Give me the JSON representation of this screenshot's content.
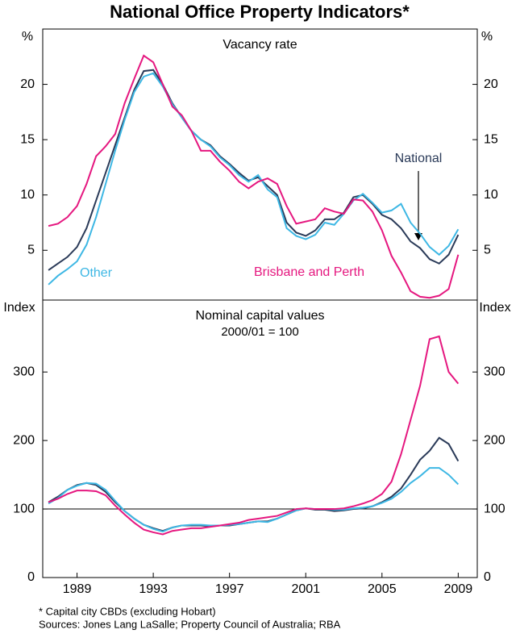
{
  "title": "National Office Property Indicators*",
  "notes": [
    "*    Capital city CBDs (excluding Hobart)",
    "Sources: Jones Lang LaSalle; Property Council of Australia; RBA"
  ],
  "chart_data": [
    {
      "type": "line",
      "title": "Vacancy rate",
      "y_unit": "%",
      "x": [
        1987.5,
        1988,
        1988.5,
        1989,
        1989.5,
        1990,
        1990.5,
        1991,
        1991.5,
        1992,
        1992.5,
        1993,
        1993.5,
        1994,
        1994.5,
        1995,
        1995.5,
        1996,
        1996.5,
        1997,
        1997.5,
        1998,
        1998.5,
        1999,
        1999.5,
        2000,
        2000.5,
        2001,
        2001.5,
        2002,
        2002.5,
        2003,
        2003.5,
        2004,
        2004.5,
        2005,
        2005.5,
        2006,
        2006.5,
        2007,
        2007.5,
        2008,
        2008.5,
        2009
      ],
      "xlim": [
        1987.2,
        2010
      ],
      "ylim": [
        0.5,
        25
      ],
      "yticks": [
        5,
        10,
        15,
        20
      ],
      "series": [
        {
          "name": "National",
          "color": "#2a3a58",
          "values": [
            3.2,
            3.8,
            4.4,
            5.3,
            7.0,
            9.5,
            12.0,
            14.5,
            17.0,
            19.5,
            21.2,
            21.3,
            20.0,
            18.3,
            17.0,
            15.8,
            15.0,
            14.5,
            13.5,
            12.8,
            12.0,
            11.3,
            11.6,
            10.8,
            10.0,
            7.5,
            6.6,
            6.3,
            6.8,
            7.8,
            7.8,
            8.4,
            9.8,
            10.0,
            9.2,
            8.2,
            7.8,
            7.0,
            5.8,
            5.2,
            4.2,
            3.8,
            4.6,
            6.4
          ]
        },
        {
          "name": "Other",
          "color": "#3db7e4",
          "values": [
            1.9,
            2.7,
            3.3,
            4.0,
            5.5,
            8.0,
            11.0,
            14.0,
            16.8,
            19.3,
            20.7,
            21.0,
            19.8,
            18.2,
            17.0,
            15.8,
            15.0,
            14.4,
            13.4,
            12.7,
            11.8,
            11.2,
            11.8,
            10.5,
            9.8,
            7.0,
            6.3,
            6.0,
            6.4,
            7.5,
            7.3,
            8.3,
            9.5,
            10.1,
            9.3,
            8.4,
            8.6,
            9.2,
            7.5,
            6.5,
            5.3,
            4.6,
            5.4,
            6.9
          ]
        },
        {
          "name": "Brisbane and Perth",
          "color": "#e5177f",
          "values": [
            7.2,
            7.4,
            8.0,
            9.0,
            11.0,
            13.5,
            14.4,
            15.5,
            18.3,
            20.5,
            22.6,
            22.0,
            20.0,
            18.0,
            17.2,
            15.8,
            14.0,
            14.0,
            13.0,
            12.2,
            11.2,
            10.6,
            11.2,
            11.5,
            11.0,
            9.0,
            7.4,
            7.6,
            7.8,
            8.8,
            8.5,
            8.3,
            9.6,
            9.5,
            8.5,
            6.8,
            4.5,
            3.0,
            1.3,
            0.8,
            0.7,
            0.9,
            1.5,
            4.6
          ]
        }
      ]
    },
    {
      "type": "line",
      "title": "Nominal capital values",
      "subtitle": "2000/01 = 100",
      "y_unit": "Index",
      "x": [
        1987.5,
        1988,
        1988.5,
        1989,
        1989.5,
        1990,
        1990.5,
        1991,
        1991.5,
        1992,
        1992.5,
        1993,
        1993.5,
        1994,
        1994.5,
        1995,
        1995.5,
        1996,
        1996.5,
        1997,
        1997.5,
        1998,
        1998.5,
        1999,
        1999.5,
        2000,
        2000.5,
        2001,
        2001.5,
        2002,
        2002.5,
        2003,
        2003.5,
        2004,
        2004.5,
        2005,
        2005.5,
        2006,
        2006.5,
        2007,
        2007.5,
        2008,
        2008.5,
        2009
      ],
      "xlim": [
        1987.2,
        2010
      ],
      "xticks": [
        1989,
        1993,
        1997,
        2001,
        2005,
        2009
      ],
      "ylim": [
        0,
        405
      ],
      "yticks": [
        0,
        100,
        200,
        300
      ],
      "reference_line": 100,
      "series": [
        {
          "color": "#2a3a58",
          "values": [
            110,
            118,
            128,
            135,
            138,
            135,
            125,
            110,
            97,
            86,
            77,
            72,
            68,
            73,
            76,
            76,
            76,
            75,
            76,
            76,
            78,
            80,
            82,
            82,
            86,
            92,
            98,
            101,
            99,
            99,
            97,
            98,
            100,
            101,
            104,
            110,
            118,
            130,
            150,
            172,
            185,
            204,
            195,
            170
          ]
        },
        {
          "color": "#3db7e4",
          "values": [
            108,
            116,
            128,
            134,
            138,
            137,
            128,
            112,
            97,
            86,
            77,
            71,
            67,
            73,
            76,
            77,
            77,
            76,
            76,
            77,
            78,
            80,
            82,
            81,
            86,
            92,
            98,
            101,
            100,
            100,
            99,
            99,
            101,
            102,
            104,
            109,
            115,
            125,
            138,
            148,
            160,
            160,
            150,
            136
          ]
        },
        {
          "color": "#e5177f",
          "values": [
            110,
            115,
            122,
            127,
            127,
            126,
            120,
            105,
            92,
            80,
            70,
            66,
            63,
            68,
            70,
            72,
            72,
            74,
            76,
            78,
            80,
            84,
            86,
            88,
            90,
            95,
            100,
            101,
            100,
            100,
            100,
            101,
            104,
            108,
            113,
            122,
            140,
            180,
            230,
            280,
            348,
            352,
            300,
            283
          ]
        }
      ]
    }
  ]
}
